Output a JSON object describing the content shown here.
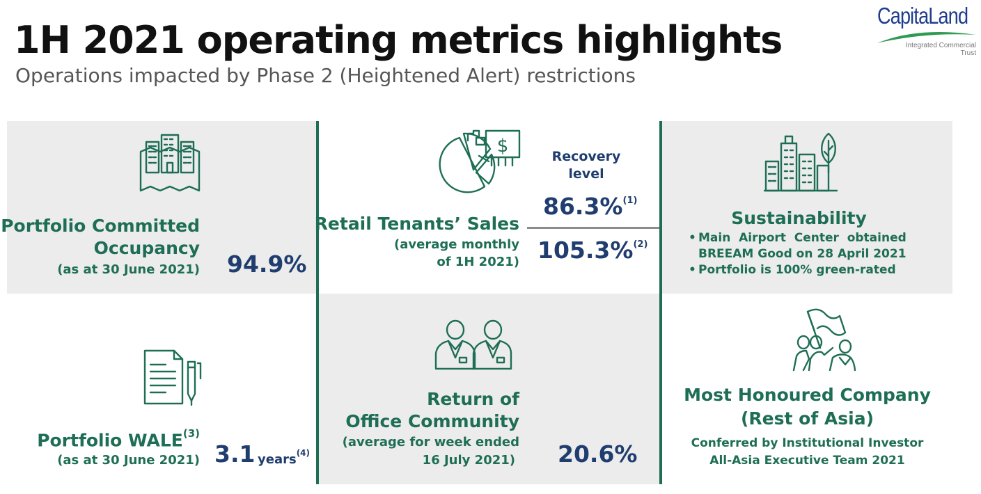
{
  "header": {
    "title": "1H 2021 operating metrics highlights",
    "subtitle": "Operations impacted by Phase 2 (Heightened Alert) restrictions"
  },
  "logo": {
    "name": "CapitaLand",
    "sub1": "Integrated Commercial",
    "sub2": "Trust"
  },
  "colors": {
    "accent_green": "#1e6e55",
    "value_navy": "#1f3d6e",
    "panel_grey": "#ececec"
  },
  "occupancy": {
    "icon": "office-buildings-map-icon",
    "label1": "Portfolio Committed",
    "label2": "Occupancy",
    "note": "(as at 30 June 2021)",
    "value": "94.9%"
  },
  "retail": {
    "icon": "pie-chart-money-icon",
    "label": "Retail Tenants’ Sales",
    "note1": "(average monthly",
    "note2": "of 1H 2021)",
    "recovery1": "Recovery",
    "recovery2": "level",
    "value1": "86.3%",
    "value1_sup": "(1)",
    "value2": "105.3%",
    "value2_sup": "(2)"
  },
  "sustainability": {
    "icon": "green-city-leaf-icon",
    "label": "Sustainability",
    "bullet1_line1": "Main  Airport  Center  obtained",
    "bullet1_line2": "BREEAM Good on 28 April 2021",
    "bullet2": "Portfolio is 100% green-rated"
  },
  "wale": {
    "icon": "document-pen-icon",
    "label": "Portfolio WALE",
    "label_sup": "(3)",
    "note": "(as at 30 June 2021)",
    "value": "3.1",
    "unit": "years",
    "unit_sup": "(4)"
  },
  "office": {
    "icon": "office-workers-icon",
    "label1": "Return of",
    "label2": "Office Community",
    "note1": "(average for week ended",
    "note2": "16 July 2021)",
    "value": "20.6%"
  },
  "award": {
    "icon": "people-flag-icon",
    "label1": "Most Honoured Company",
    "label2": "(Rest of Asia)",
    "note1": "Conferred by Institutional Investor",
    "note2": "All-Asia Executive Team 2021"
  }
}
